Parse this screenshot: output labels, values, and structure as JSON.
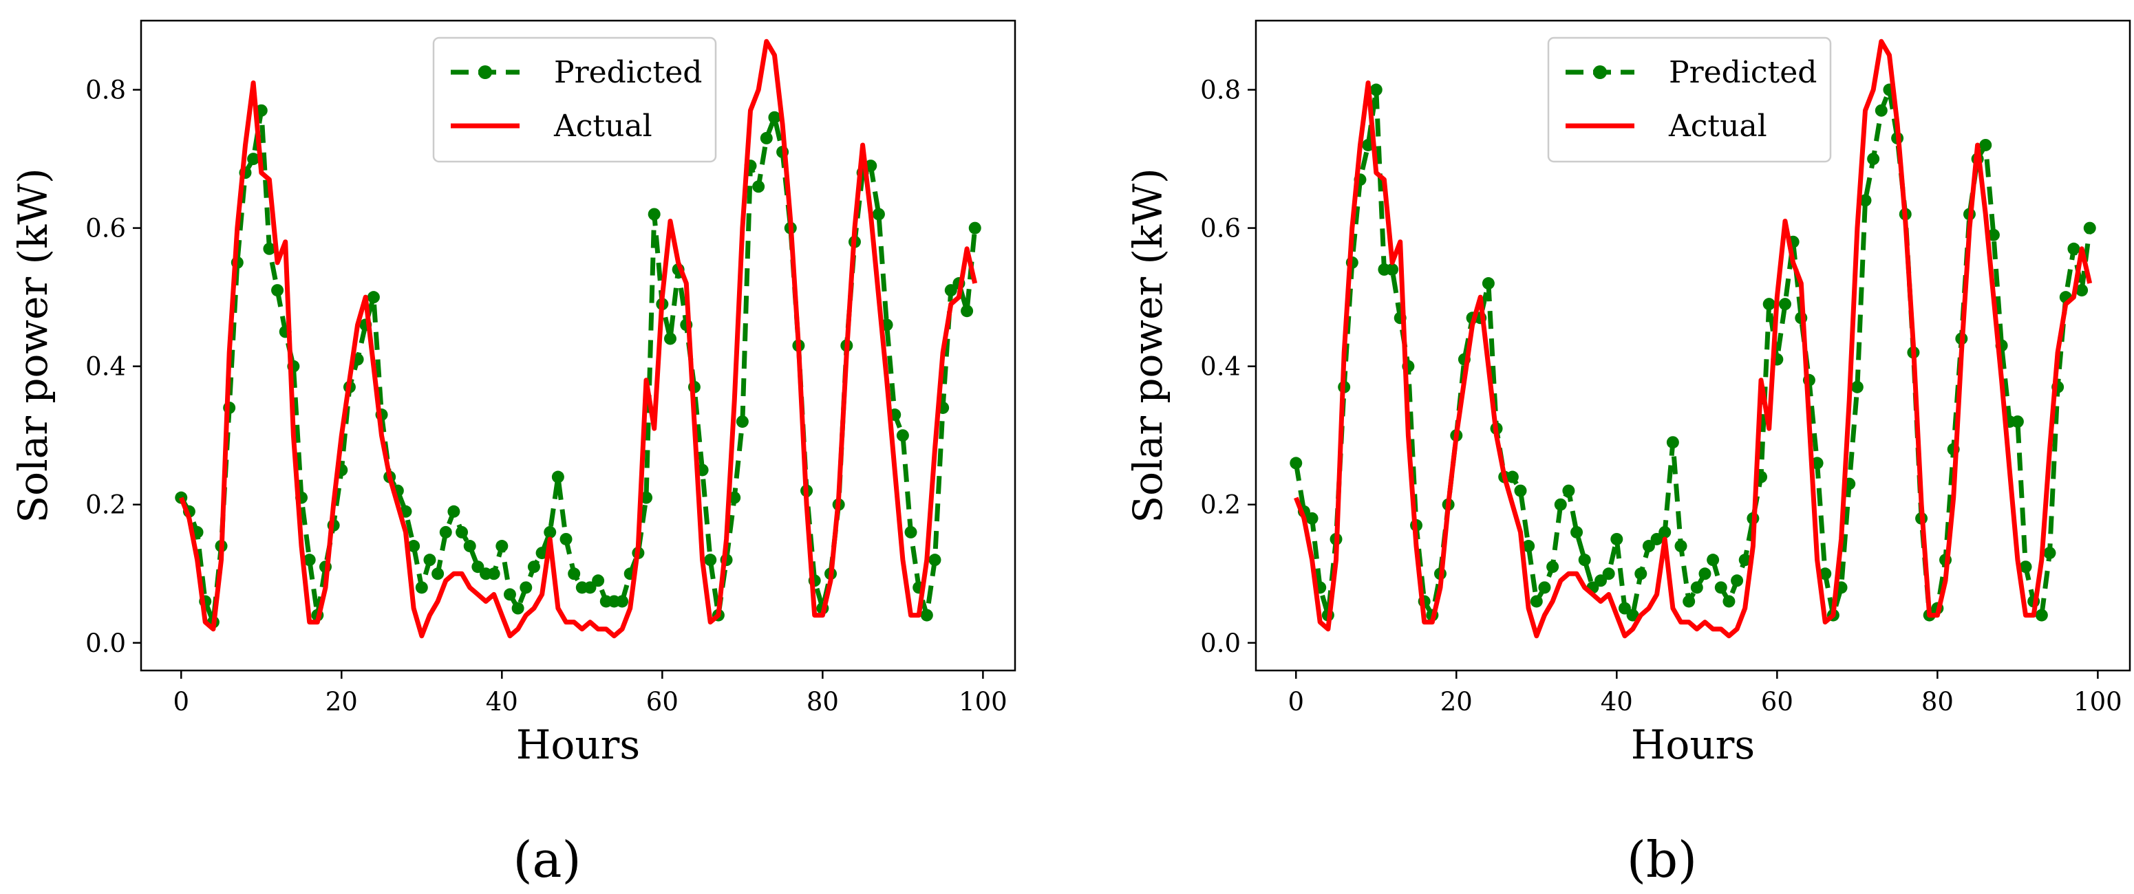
{
  "colors": {
    "predicted": "#007f00",
    "actual": "#ff0000"
  },
  "chart_data": [
    {
      "panel_label": "(a)",
      "type": "line",
      "xlabel": "Hours",
      "ylabel": "Solar power  (kW)",
      "xlim": [
        -5,
        104
      ],
      "ylim": [
        -0.04,
        0.9
      ],
      "xticks": [
        0,
        20,
        40,
        60,
        80,
        100
      ],
      "yticks": [
        0.0,
        0.2,
        0.4,
        0.6,
        0.8
      ],
      "xtick_labels": [
        "0",
        "20",
        "40",
        "60",
        "80",
        "100"
      ],
      "ytick_labels": [
        "0.0",
        "0.2",
        "0.4",
        "0.6",
        "0.8"
      ],
      "legend": {
        "position": "top-center",
        "entries": [
          "Predicted",
          "Actual"
        ]
      },
      "series": [
        {
          "name": "Predicted",
          "style": "dashed-markers",
          "x": [
            0,
            1,
            2,
            3,
            4,
            5,
            6,
            7,
            8,
            9,
            10,
            11,
            12,
            13,
            14,
            15,
            16,
            17,
            18,
            19,
            20,
            21,
            22,
            23,
            24,
            25,
            26,
            27,
            28,
            29,
            30,
            31,
            32,
            33,
            34,
            35,
            36,
            37,
            38,
            39,
            40,
            41,
            42,
            43,
            44,
            45,
            46,
            47,
            48,
            49,
            50,
            51,
            52,
            53,
            54,
            55,
            56,
            57,
            58,
            59,
            60,
            61,
            62,
            63,
            64,
            65,
            66,
            67,
            68,
            69,
            70,
            71,
            72,
            73,
            74,
            75,
            76,
            77,
            78,
            79,
            80,
            81,
            82,
            83,
            84,
            85,
            86,
            87,
            88,
            89,
            90,
            91,
            92,
            93,
            94,
            95,
            96,
            97,
            98,
            99
          ],
          "values": [
            0.21,
            0.19,
            0.16,
            0.06,
            0.03,
            0.14,
            0.34,
            0.55,
            0.68,
            0.7,
            0.77,
            0.57,
            0.51,
            0.45,
            0.4,
            0.21,
            0.12,
            0.04,
            0.11,
            0.17,
            0.25,
            0.37,
            0.41,
            0.46,
            0.5,
            0.33,
            0.24,
            0.22,
            0.19,
            0.14,
            0.08,
            0.12,
            0.1,
            0.16,
            0.19,
            0.16,
            0.14,
            0.11,
            0.1,
            0.1,
            0.14,
            0.07,
            0.05,
            0.08,
            0.11,
            0.13,
            0.16,
            0.24,
            0.15,
            0.1,
            0.08,
            0.08,
            0.09,
            0.06,
            0.06,
            0.06,
            0.1,
            0.13,
            0.21,
            0.62,
            0.49,
            0.44,
            0.54,
            0.46,
            0.37,
            0.25,
            0.12,
            0.04,
            0.12,
            0.21,
            0.32,
            0.69,
            0.66,
            0.73,
            0.76,
            0.71,
            0.6,
            0.43,
            0.22,
            0.09,
            0.05,
            0.1,
            0.2,
            0.43,
            0.58,
            0.68,
            0.69,
            0.62,
            0.46,
            0.33,
            0.3,
            0.16,
            0.08,
            0.04,
            0.12,
            0.34,
            0.51,
            0.52,
            0.48,
            0.6
          ]
        },
        {
          "name": "Actual",
          "style": "solid",
          "x": [
            0,
            1,
            2,
            3,
            4,
            5,
            6,
            7,
            8,
            9,
            10,
            11,
            12,
            13,
            14,
            15,
            16,
            17,
            18,
            19,
            20,
            21,
            22,
            23,
            24,
            25,
            26,
            27,
            28,
            29,
            30,
            31,
            32,
            33,
            34,
            35,
            36,
            37,
            38,
            39,
            40,
            41,
            42,
            43,
            44,
            45,
            46,
            47,
            48,
            49,
            50,
            51,
            52,
            53,
            54,
            55,
            56,
            57,
            58,
            59,
            60,
            61,
            62,
            63,
            64,
            65,
            66,
            67,
            68,
            69,
            70,
            71,
            72,
            73,
            74,
            75,
            76,
            77,
            78,
            79,
            80,
            81,
            82,
            83,
            84,
            85,
            86,
            87,
            88,
            89,
            90,
            91,
            92,
            93,
            94,
            95,
            96,
            97,
            98,
            99
          ],
          "values": [
            0.21,
            0.18,
            0.12,
            0.03,
            0.02,
            0.12,
            0.42,
            0.6,
            0.72,
            0.81,
            0.68,
            0.67,
            0.55,
            0.58,
            0.3,
            0.14,
            0.03,
            0.03,
            0.08,
            0.2,
            0.3,
            0.38,
            0.46,
            0.5,
            0.4,
            0.3,
            0.24,
            0.2,
            0.16,
            0.05,
            0.01,
            0.04,
            0.06,
            0.09,
            0.1,
            0.1,
            0.08,
            0.07,
            0.06,
            0.07,
            0.04,
            0.01,
            0.02,
            0.04,
            0.05,
            0.07,
            0.15,
            0.05,
            0.03,
            0.03,
            0.02,
            0.03,
            0.02,
            0.02,
            0.01,
            0.02,
            0.05,
            0.14,
            0.38,
            0.31,
            0.5,
            0.61,
            0.55,
            0.52,
            0.32,
            0.12,
            0.03,
            0.04,
            0.15,
            0.35,
            0.6,
            0.77,
            0.8,
            0.87,
            0.85,
            0.75,
            0.61,
            0.43,
            0.2,
            0.04,
            0.04,
            0.09,
            0.21,
            0.42,
            0.6,
            0.72,
            0.62,
            0.5,
            0.38,
            0.25,
            0.12,
            0.04,
            0.04,
            0.12,
            0.28,
            0.42,
            0.49,
            0.5,
            0.57,
            0.52
          ]
        }
      ]
    },
    {
      "panel_label": "(b)",
      "type": "line",
      "xlabel": "Hours",
      "ylabel": "Solar power  (kW)",
      "xlim": [
        -5,
        104
      ],
      "ylim": [
        -0.04,
        0.9
      ],
      "xticks": [
        0,
        20,
        40,
        60,
        80,
        100
      ],
      "yticks": [
        0.0,
        0.2,
        0.4,
        0.6,
        0.8
      ],
      "xtick_labels": [
        "0",
        "20",
        "40",
        "60",
        "80",
        "100"
      ],
      "ytick_labels": [
        "0.0",
        "0.2",
        "0.4",
        "0.6",
        "0.8"
      ],
      "legend": {
        "position": "top-center",
        "entries": [
          "Predicted",
          "Actual"
        ]
      },
      "series": [
        {
          "name": "Predicted",
          "style": "dashed-markers",
          "x": [
            0,
            1,
            2,
            3,
            4,
            5,
            6,
            7,
            8,
            9,
            10,
            11,
            12,
            13,
            14,
            15,
            16,
            17,
            18,
            19,
            20,
            21,
            22,
            23,
            24,
            25,
            26,
            27,
            28,
            29,
            30,
            31,
            32,
            33,
            34,
            35,
            36,
            37,
            38,
            39,
            40,
            41,
            42,
            43,
            44,
            45,
            46,
            47,
            48,
            49,
            50,
            51,
            52,
            53,
            54,
            55,
            56,
            57,
            58,
            59,
            60,
            61,
            62,
            63,
            64,
            65,
            66,
            67,
            68,
            69,
            70,
            71,
            72,
            73,
            74,
            75,
            76,
            77,
            78,
            79,
            80,
            81,
            82,
            83,
            84,
            85,
            86,
            87,
            88,
            89,
            90,
            91,
            92,
            93,
            94,
            95,
            96,
            97,
            98,
            99
          ],
          "values": [
            0.26,
            0.19,
            0.18,
            0.08,
            0.04,
            0.15,
            0.37,
            0.55,
            0.67,
            0.72,
            0.8,
            0.54,
            0.54,
            0.47,
            0.4,
            0.17,
            0.06,
            0.04,
            0.1,
            0.2,
            0.3,
            0.41,
            0.47,
            0.47,
            0.52,
            0.31,
            0.24,
            0.24,
            0.22,
            0.14,
            0.06,
            0.08,
            0.11,
            0.2,
            0.22,
            0.16,
            0.12,
            0.08,
            0.09,
            0.1,
            0.15,
            0.05,
            0.04,
            0.1,
            0.14,
            0.15,
            0.16,
            0.29,
            0.14,
            0.06,
            0.08,
            0.1,
            0.12,
            0.08,
            0.06,
            0.09,
            0.12,
            0.18,
            0.24,
            0.49,
            0.41,
            0.49,
            0.58,
            0.47,
            0.38,
            0.26,
            0.1,
            0.04,
            0.08,
            0.23,
            0.37,
            0.64,
            0.7,
            0.77,
            0.8,
            0.73,
            0.62,
            0.42,
            0.18,
            0.04,
            0.05,
            0.12,
            0.28,
            0.44,
            0.62,
            0.7,
            0.72,
            0.59,
            0.43,
            0.32,
            0.32,
            0.11,
            0.06,
            0.04,
            0.13,
            0.37,
            0.5,
            0.57,
            0.51,
            0.6
          ]
        },
        {
          "name": "Actual",
          "style": "solid",
          "x": [
            0,
            1,
            2,
            3,
            4,
            5,
            6,
            7,
            8,
            9,
            10,
            11,
            12,
            13,
            14,
            15,
            16,
            17,
            18,
            19,
            20,
            21,
            22,
            23,
            24,
            25,
            26,
            27,
            28,
            29,
            30,
            31,
            32,
            33,
            34,
            35,
            36,
            37,
            38,
            39,
            40,
            41,
            42,
            43,
            44,
            45,
            46,
            47,
            48,
            49,
            50,
            51,
            52,
            53,
            54,
            55,
            56,
            57,
            58,
            59,
            60,
            61,
            62,
            63,
            64,
            65,
            66,
            67,
            68,
            69,
            70,
            71,
            72,
            73,
            74,
            75,
            76,
            77,
            78,
            79,
            80,
            81,
            82,
            83,
            84,
            85,
            86,
            87,
            88,
            89,
            90,
            91,
            92,
            93,
            94,
            95,
            96,
            97,
            98,
            99
          ],
          "values": [
            0.21,
            0.18,
            0.12,
            0.03,
            0.02,
            0.12,
            0.42,
            0.6,
            0.72,
            0.81,
            0.68,
            0.67,
            0.55,
            0.58,
            0.3,
            0.14,
            0.03,
            0.03,
            0.08,
            0.2,
            0.3,
            0.38,
            0.46,
            0.5,
            0.4,
            0.3,
            0.24,
            0.2,
            0.16,
            0.05,
            0.01,
            0.04,
            0.06,
            0.09,
            0.1,
            0.1,
            0.08,
            0.07,
            0.06,
            0.07,
            0.04,
            0.01,
            0.02,
            0.04,
            0.05,
            0.07,
            0.15,
            0.05,
            0.03,
            0.03,
            0.02,
            0.03,
            0.02,
            0.02,
            0.01,
            0.02,
            0.05,
            0.14,
            0.38,
            0.31,
            0.5,
            0.61,
            0.55,
            0.52,
            0.32,
            0.12,
            0.03,
            0.04,
            0.15,
            0.35,
            0.6,
            0.77,
            0.8,
            0.87,
            0.85,
            0.75,
            0.61,
            0.43,
            0.2,
            0.04,
            0.04,
            0.09,
            0.21,
            0.42,
            0.6,
            0.72,
            0.62,
            0.5,
            0.38,
            0.25,
            0.12,
            0.04,
            0.04,
            0.12,
            0.28,
            0.42,
            0.49,
            0.5,
            0.57,
            0.52
          ]
        }
      ]
    }
  ]
}
